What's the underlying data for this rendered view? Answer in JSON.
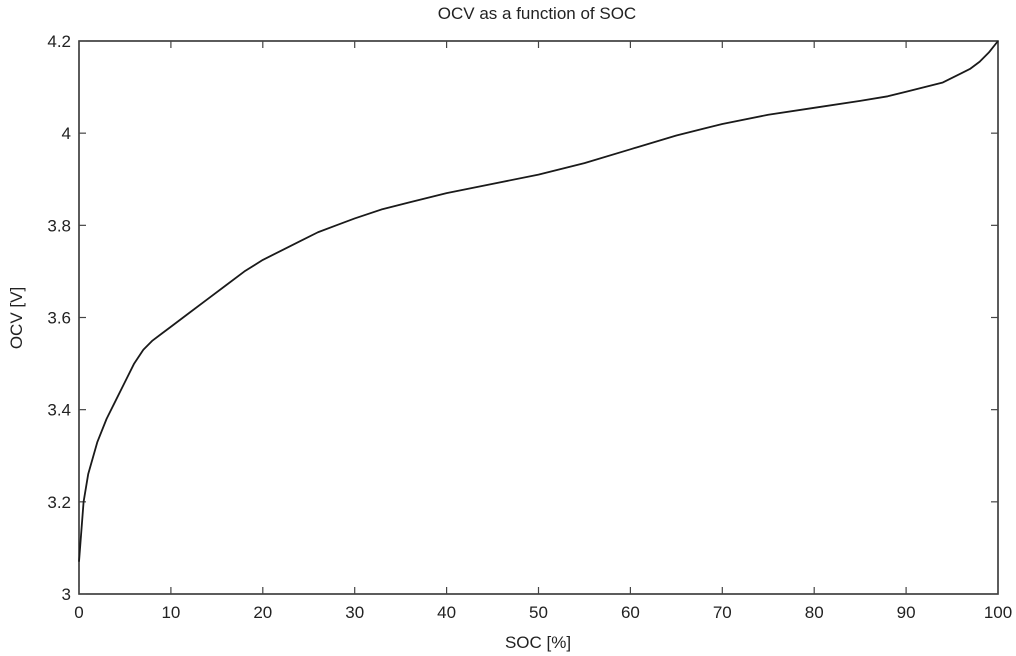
{
  "chart_data": {
    "type": "line",
    "title": "OCV as a function of SOC",
    "xlabel": "SOC [%]",
    "ylabel": "OCV [V]",
    "xlim": [
      0,
      100
    ],
    "ylim": [
      3,
      4.2
    ],
    "xticks": [
      0,
      10,
      20,
      30,
      40,
      50,
      60,
      70,
      80,
      90,
      100
    ],
    "xtick_labels": [
      "0",
      "10",
      "20",
      "30",
      "40",
      "50",
      "60",
      "70",
      "80",
      "90",
      "100"
    ],
    "yticks": [
      3,
      3.2,
      3.4,
      3.6,
      3.8,
      4,
      4.2
    ],
    "ytick_labels": [
      "3",
      "3.2",
      "3.4",
      "3.6",
      "3.8",
      "4",
      "4.2"
    ],
    "grid": false,
    "legend": "none",
    "line_color": "#1a1a1a",
    "series": [
      {
        "x": [
          0,
          0.5,
          1,
          2,
          3,
          4,
          5,
          6,
          7,
          8,
          9,
          10,
          12,
          14,
          16,
          18,
          20,
          22,
          24,
          26,
          28,
          30,
          33,
          36,
          40,
          45,
          50,
          55,
          60,
          65,
          70,
          75,
          80,
          85,
          88,
          90,
          92,
          94,
          96,
          97,
          98,
          99,
          100
        ],
        "y": [
          3.07,
          3.2,
          3.26,
          3.33,
          3.38,
          3.42,
          3.46,
          3.5,
          3.53,
          3.55,
          3.565,
          3.58,
          3.61,
          3.64,
          3.67,
          3.7,
          3.725,
          3.745,
          3.765,
          3.785,
          3.8,
          3.815,
          3.835,
          3.85,
          3.87,
          3.89,
          3.91,
          3.935,
          3.965,
          3.995,
          4.02,
          4.04,
          4.055,
          4.07,
          4.08,
          4.09,
          4.1,
          4.11,
          4.13,
          4.14,
          4.155,
          4.175,
          4.2
        ]
      }
    ]
  }
}
